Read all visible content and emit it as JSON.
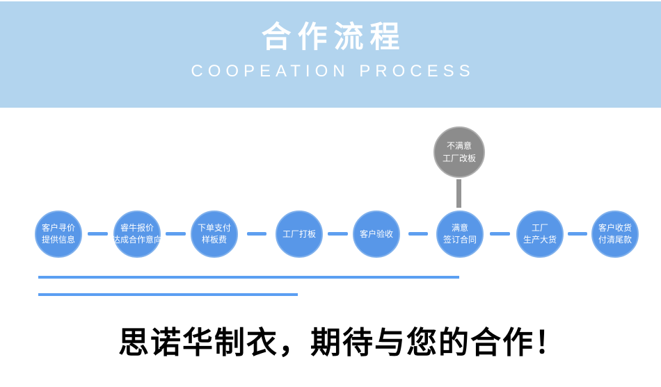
{
  "header": {
    "title": "合作流程",
    "subtitle": "COOPEATION PROCESS",
    "background_color": "#b2d4ee",
    "text_color": "#ffffff"
  },
  "flow": {
    "node_color": "#5897e8",
    "connector_color": "#5e9ff0",
    "steps": [
      {
        "lines": [
          "客户寻价",
          "提供信息"
        ]
      },
      {
        "lines": [
          "睿牛报价",
          "达成合作意向"
        ]
      },
      {
        "lines": [
          "下单支付",
          "样板费"
        ]
      },
      {
        "lines": [
          "工厂打板"
        ]
      },
      {
        "lines": [
          "客户验收"
        ]
      },
      {
        "lines": [
          "满意",
          "签订合同"
        ]
      },
      {
        "lines": [
          "工厂",
          "生产大货"
        ]
      },
      {
        "lines": [
          "客户收货",
          "付清尾款"
        ]
      }
    ],
    "alt_node": {
      "lines": [
        "不满意",
        "工厂改板"
      ],
      "color": "#8c8c8c",
      "connector_color": "#949494"
    }
  },
  "decor": {
    "underline_color": "#5b9ff2"
  },
  "footer": {
    "slogan": "思诺华制衣，期待与您的合作！"
  }
}
